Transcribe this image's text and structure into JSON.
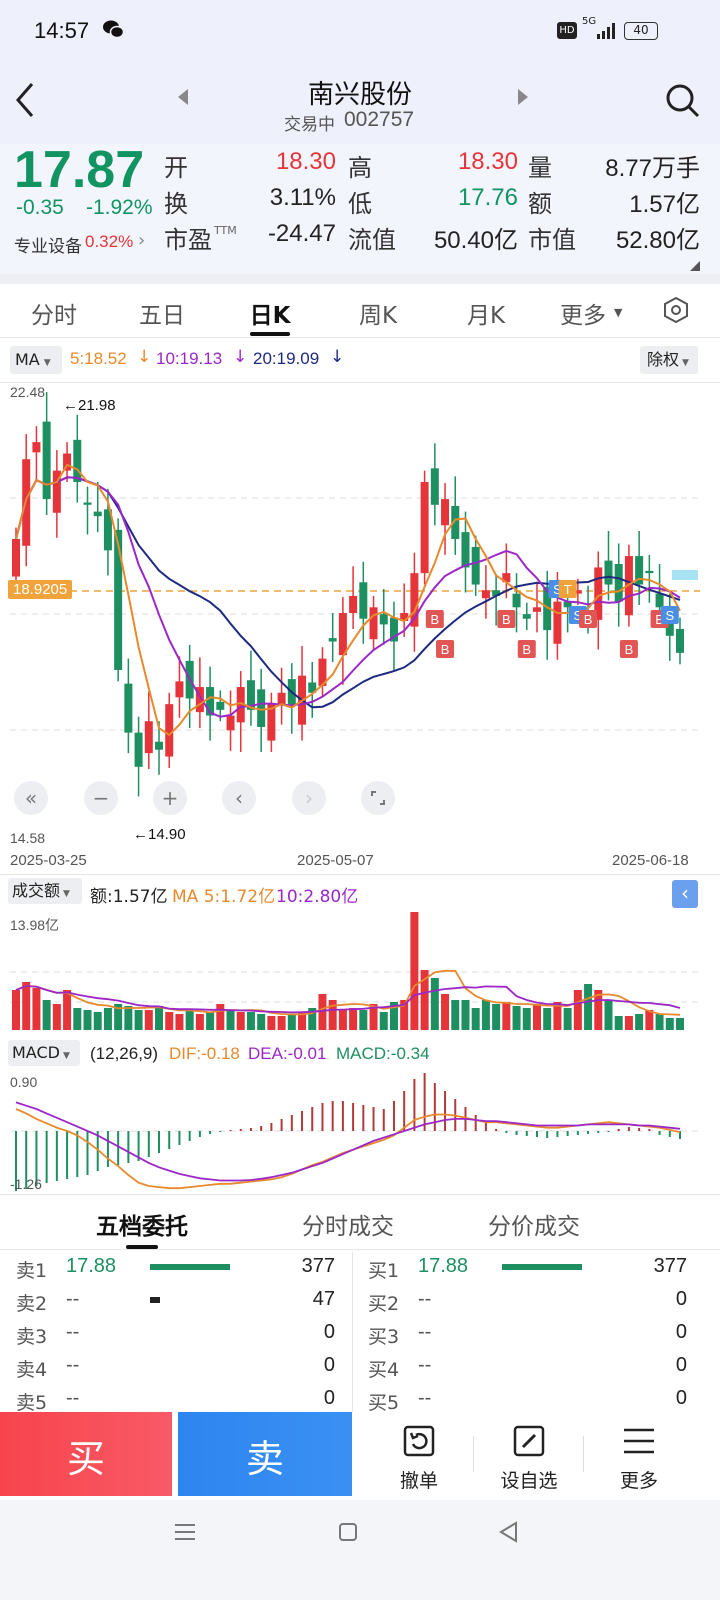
{
  "status_bar": {
    "time": "14:57",
    "network": "5G",
    "hd": "HD",
    "battery": "40"
  },
  "header": {
    "stock_name": "南兴股份",
    "status": "交易中",
    "code": "002757"
  },
  "quote": {
    "price": "17.87",
    "change": "-0.35",
    "change_pct": "-1.92%",
    "sector_name": "专业设备",
    "sector_pct": "0.32%",
    "open_label": "开",
    "open": "18.30",
    "high_label": "高",
    "high": "18.30",
    "volume_label": "量",
    "volume": "8.77万手",
    "turnover_label": "换",
    "turnover": "3.11%",
    "low_label": "低",
    "low": "17.76",
    "amount_label": "额",
    "amount": "1.57亿",
    "pe_label": "市盈",
    "pe_tm": "TTM",
    "pe": "-24.47",
    "float_label": "流值",
    "float_value": "50.40亿",
    "mcap_label": "市值",
    "mcap": "52.80亿"
  },
  "tabs": [
    "分时",
    "五日",
    "日K",
    "周K",
    "月K",
    "更多"
  ],
  "kline": {
    "indicator": "MA",
    "ma5": "5:18.52",
    "ma10": "10:19.13",
    "ma20": "20:19.09",
    "adjust": "除权",
    "y_top": "22.48",
    "y_bottom": "14.58",
    "high_marker": "←21.98",
    "low_marker": "←14.90",
    "price_line": "18.9205",
    "dates": [
      "2025-03-25",
      "2025-05-07",
      "2025-06-18"
    ],
    "colors": {
      "up": "#e5343a",
      "down": "#1e8f61",
      "ma5": "#e8892c",
      "ma10": "#9c27c9",
      "ma20": "#1d2a80"
    }
  },
  "volume_panel": {
    "label": "成交额",
    "amount": "额:1.57亿",
    "ma5": "MA 5:1.72亿",
    "ma10": "10:2.80亿",
    "y_top": "13.98亿"
  },
  "macd_panel": {
    "label": "MACD",
    "params": "(12,26,9)",
    "dif": "DIF:-0.18",
    "dea": "DEA:-0.01",
    "macd": "MACD:-0.34",
    "y_top": "0.90",
    "y_bottom": "-1.26"
  },
  "order_tabs": [
    "五档委托",
    "分时成交",
    "分价成交"
  ],
  "order_book": {
    "sell": [
      {
        "label": "卖1",
        "price": "17.88",
        "qty": "377",
        "bar": 1.0
      },
      {
        "label": "卖2",
        "price": "--",
        "qty": "47",
        "bar": 0.12
      },
      {
        "label": "卖3",
        "price": "--",
        "qty": "0",
        "bar": 0
      },
      {
        "label": "卖4",
        "price": "--",
        "qty": "0",
        "bar": 0
      },
      {
        "label": "卖5",
        "price": "--",
        "qty": "0",
        "bar": 0
      }
    ],
    "buy": [
      {
        "label": "买1",
        "price": "17.88",
        "qty": "377",
        "bar": 1.0
      },
      {
        "label": "买2",
        "price": "--",
        "qty": "0",
        "bar": 0
      },
      {
        "label": "买3",
        "price": "--",
        "qty": "0",
        "bar": 0
      },
      {
        "label": "买4",
        "price": "--",
        "qty": "0",
        "bar": 0
      },
      {
        "label": "买5",
        "price": "--",
        "qty": "0",
        "bar": 0
      }
    ]
  },
  "actions": {
    "buy": "买",
    "sell": "卖",
    "cancel": "撤单",
    "watchlist": "设自选",
    "more": "更多"
  }
}
